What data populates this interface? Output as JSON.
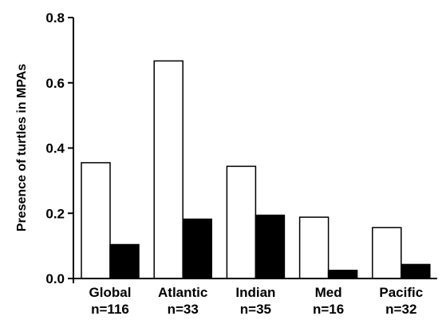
{
  "chart_data": {
    "type": "bar",
    "title": "",
    "xlabel": "",
    "ylabel": "Presence of turtles in MPAs",
    "ylim": [
      0,
      0.8
    ],
    "yticks": [
      0.0,
      0.2,
      0.4,
      0.6,
      0.8
    ],
    "ytick_labels": [
      "0.0",
      "0.2",
      "0.4",
      "0.6",
      "0.8"
    ],
    "grid": false,
    "categories": [
      {
        "name": "Global",
        "n": "n=116"
      },
      {
        "name": "Atlantic",
        "n": "n=33"
      },
      {
        "name": "Indian",
        "n": "n=35"
      },
      {
        "name": "Med",
        "n": "n=16"
      },
      {
        "name": "Pacific",
        "n": "n=32"
      }
    ],
    "series": [
      {
        "fill": "#ffffff",
        "values": [
          0.355,
          0.667,
          0.344,
          0.188,
          0.156
        ]
      },
      {
        "fill": "#000000",
        "values": [
          0.104,
          0.182,
          0.194,
          0.025,
          0.043
        ]
      }
    ]
  }
}
